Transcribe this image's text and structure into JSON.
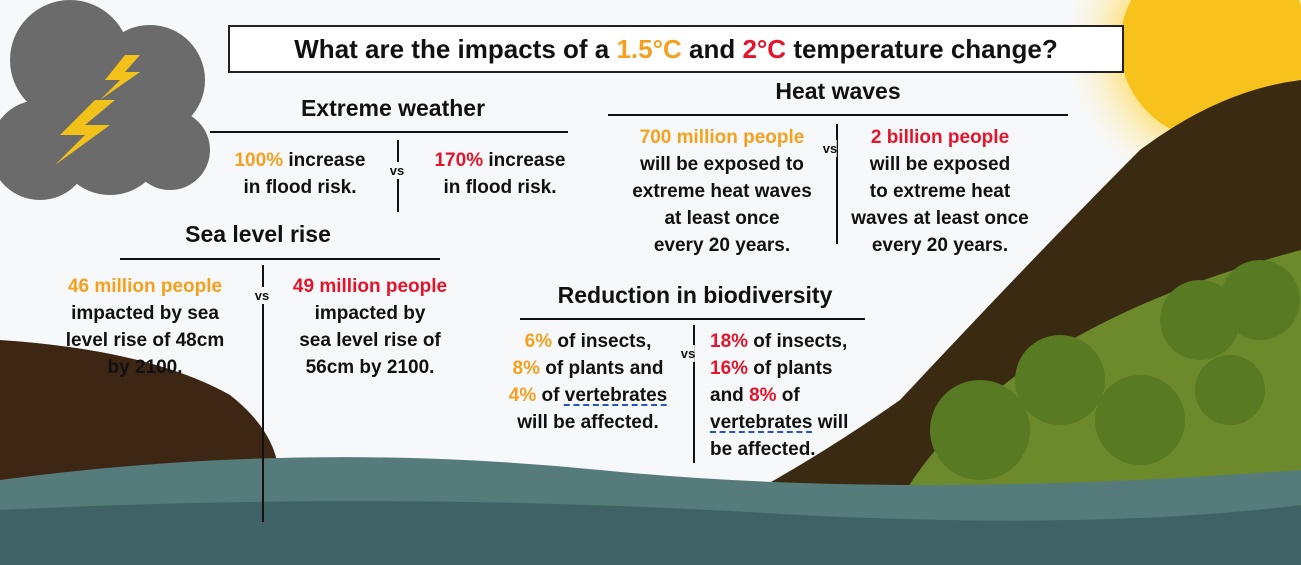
{
  "title": [
    "What are the impacts of a ",
    {
      "text": "1.5°C",
      "color": "#f5a01f"
    },
    " and ",
    {
      "text": "2°C",
      "color": "#e4152b"
    },
    " temperature change?"
  ],
  "sections": [
    {
      "heading": "Extreme weather",
      "vs": "vs",
      "left": [
        [
          {
            "text": "100%",
            "color": "#f5a01f"
          },
          " increase"
        ],
        [
          "in flood risk."
        ]
      ],
      "right": [
        [
          {
            "text": "170%",
            "color": "#e4152b"
          },
          " increase"
        ],
        [
          "in flood risk."
        ]
      ]
    },
    {
      "heading": "Heat waves",
      "vs": "vs",
      "left": [
        [
          {
            "text": "700 million people",
            "color": "#f5a01f"
          }
        ],
        [
          "will be exposed to"
        ],
        [
          "extreme heat waves"
        ],
        [
          "at least once"
        ],
        [
          "every 20 years."
        ]
      ],
      "right": [
        [
          {
            "text": "2 billion people",
            "color": "#e4152b"
          }
        ],
        [
          "will be exposed"
        ],
        [
          "to extreme heat"
        ],
        [
          "waves at least once"
        ],
        [
          "every 20 years."
        ]
      ]
    },
    {
      "heading": "Sea level rise",
      "vs": "vs",
      "left": [
        [
          {
            "text": "46 million people",
            "color": "#f5a01f"
          }
        ],
        [
          "impacted by sea"
        ],
        [
          "level rise of 48cm"
        ],
        [
          "by 2100."
        ]
      ],
      "right": [
        [
          {
            "text": "49 million people",
            "color": "#e4152b"
          }
        ],
        [
          "impacted by"
        ],
        [
          "sea level rise of"
        ],
        [
          "56cm by 2100."
        ]
      ]
    },
    {
      "heading": "Reduction in biodiversity",
      "vs": "vs",
      "left": [
        [
          {
            "text": "6%",
            "color": "#f5a01f"
          },
          " of insects,"
        ],
        [
          {
            "text": "8%",
            "color": "#f5a01f"
          },
          " of plants and"
        ],
        [
          {
            "text": "4%",
            "color": "#f5a01f"
          },
          " of ",
          {
            "text": "vertebrates",
            "underline": "#2255cc"
          }
        ],
        [
          "will be affected."
        ]
      ],
      "right": [
        [
          {
            "text": "18%",
            "color": "#e4152b"
          },
          " of insects,"
        ],
        [
          {
            "text": "16%",
            "color": "#e4152b"
          },
          " of plants"
        ],
        [
          "and ",
          {
            "text": "8%",
            "color": "#e4152b"
          },
          " of"
        ],
        [
          {
            "text": "vertebrates",
            "underline": "#2255cc"
          },
          " will"
        ],
        [
          "be affected."
        ]
      ]
    }
  ]
}
